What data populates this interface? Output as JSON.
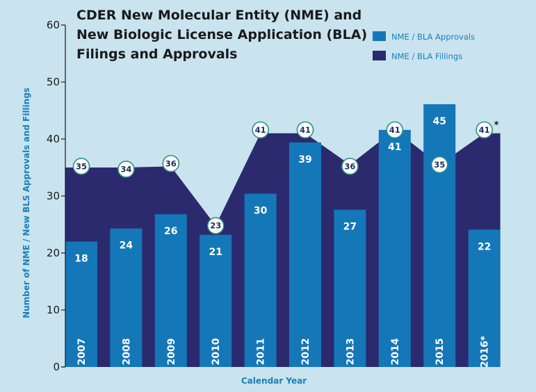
{
  "chart_data": {
    "type": "bar",
    "title_lines": [
      "CDER New Molecular Entity (NME) and",
      "New Biologic License Application (BLA)",
      "Filings and Approvals"
    ],
    "xlabel": "Calendar Year",
    "ylabel": "Number of NME / New BLS Approvals and Fillings",
    "ylim": [
      0,
      60
    ],
    "yticks": [
      "0",
      "10",
      "20",
      "30",
      "40",
      "50",
      "60"
    ],
    "ytick_values": [
      0,
      10,
      20,
      30,
      40,
      50,
      60
    ],
    "categories": [
      "2007",
      "2008",
      "2009",
      "2010",
      "2011",
      "2012",
      "2013",
      "2014",
      "2015",
      "2016*"
    ],
    "series": [
      {
        "name": "NME / BLA Approvals",
        "chart_type": "bar",
        "color": "#1477b8",
        "values": [
          18,
          24,
          26,
          21,
          30,
          39,
          27,
          41,
          45,
          22
        ],
        "plotted_heights": [
          22,
          24.3,
          26.8,
          23.2,
          30.4,
          39.4,
          27.6,
          41.6,
          46.1,
          24.1
        ]
      },
      {
        "name": "NME / BLA Fillings",
        "chart_type": "area",
        "color": "#2b2a6e",
        "values": [
          35,
          34,
          36,
          23,
          41,
          41,
          36,
          41,
          35,
          41
        ]
      }
    ],
    "filing_area_points": [
      35,
      35,
      35.2,
      24.8,
      41,
      41,
      35.5,
      41.6,
      35.5,
      41
    ],
    "filing_bubble_positions": [
      35.2,
      34.7,
      35.7,
      24.8,
      41.6,
      41.6,
      35.2,
      41.6,
      35.5,
      41.6
    ],
    "annotation": "*",
    "legend_position": "top-right",
    "grid": false
  }
}
